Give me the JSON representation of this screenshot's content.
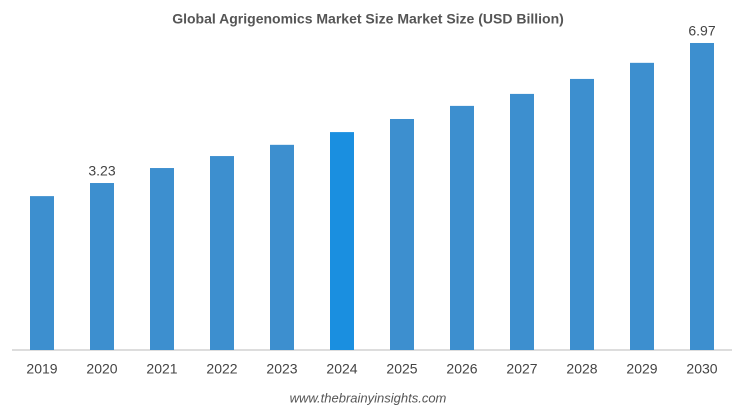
{
  "chart_data": {
    "type": "bar",
    "title": "Global Agrigenomics Market Size Market Size (USD Billion)",
    "categories": [
      "2019",
      "2020",
      "2021",
      "2022",
      "2023",
      "2024",
      "2025",
      "2026",
      "2027",
      "2028",
      "2029",
      "2030"
    ],
    "values": [
      2.88,
      3.23,
      3.63,
      3.95,
      4.25,
      4.59,
      4.94,
      5.29,
      5.61,
      6.01,
      6.44,
      6.97
    ],
    "value_labels": [
      null,
      "3.23",
      null,
      null,
      null,
      null,
      null,
      null,
      null,
      null,
      null,
      "6.97"
    ],
    "colors": [
      "#3d8fcf",
      "#3d8fcf",
      "#3d8fcf",
      "#3d8fcf",
      "#3d8fcf",
      "#1a8fe0",
      "#3d8fcf",
      "#3d8fcf",
      "#3d8fcf",
      "#3d8fcf",
      "#3d8fcf",
      "#3d8fcf"
    ],
    "ylim": [
      -1.23,
      7.21
    ],
    "source": "www.thebrainyinsights.com"
  }
}
